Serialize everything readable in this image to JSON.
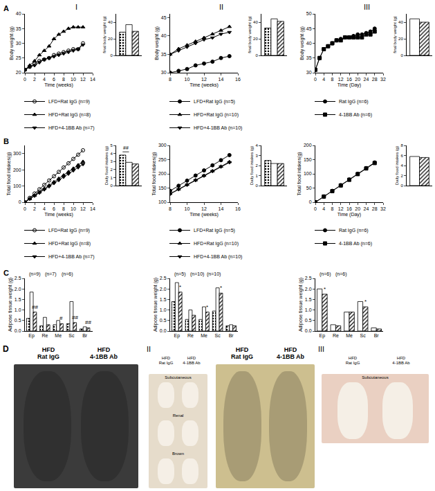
{
  "panel_labels": {
    "rows": [
      "A",
      "B",
      "C"
    ],
    "columns": [
      "I",
      "II",
      "III"
    ]
  },
  "chart_data": [
    {
      "type": "line",
      "x_label": "Time (weeks)",
      "y_label": "Body weight (g)",
      "legend": "bottom",
      "x": [
        0,
        1,
        2,
        3,
        4,
        5,
        6,
        7,
        8,
        9,
        10,
        11,
        12
      ],
      "xlim": [
        0,
        14
      ],
      "xticks": [
        0,
        2,
        4,
        6,
        8,
        10,
        12,
        14
      ],
      "ylim": [
        20,
        40
      ],
      "yticks": [
        20,
        25,
        30,
        35,
        40
      ],
      "series": [
        {
          "name": "LFD+Rat IgG (n=9)",
          "color": "#000000",
          "marker": "circle-open",
          "values": [
            21,
            22,
            23,
            24,
            24.5,
            25,
            26,
            26.5,
            27,
            27.5,
            28,
            28,
            30
          ]
        },
        {
          "name": "HFD+Rat IgG (n=8)",
          "color": "#000000",
          "marker": "triangle-up",
          "values": [
            21,
            22.5,
            24,
            26,
            27.5,
            29,
            31.5,
            33,
            34,
            35,
            35.5,
            35.5,
            35.5
          ]
        },
        {
          "name": "HFD+4-1BB Ab (n=7)",
          "color": "#000000",
          "marker": "triangle-down",
          "values": [
            21,
            22,
            22.5,
            23.5,
            24.5,
            25,
            25.5,
            26,
            26.5,
            27,
            27.5,
            28,
            29.5
          ]
        }
      ]
    },
    {
      "type": "bar",
      "y_label": "final body weight (g)",
      "categories": [
        null
      ],
      "tick_labels": "y",
      "ylim": [
        0,
        50
      ],
      "yticks": [
        0,
        20,
        40
      ],
      "series": [
        {
          "color": "#ffffff",
          "marker": "dotted",
          "values": [
            28
          ]
        },
        {
          "color": "#ffffff",
          "marker": "plain",
          "values": [
            37
          ]
        },
        {
          "color": "#ffffff",
          "marker": "hatched",
          "values": [
            29
          ]
        }
      ]
    },
    {
      "type": "line",
      "x_label": "Time (weeks)",
      "y_label": "Body weight (g)",
      "legend": "bottom",
      "x": [
        8,
        9,
        10,
        11,
        12,
        13,
        14,
        15
      ],
      "xlim": [
        8,
        16
      ],
      "xticks": [
        8,
        10,
        12,
        14,
        16
      ],
      "ylim": [
        30,
        46
      ],
      "yticks": [
        30,
        35,
        40,
        45
      ],
      "series": [
        {
          "name": "LFD+Rat IgG (n=5)",
          "color": "#000000",
          "marker": "circle",
          "values": [
            30,
            30.5,
            31,
            32,
            32.5,
            33,
            34,
            34.5
          ]
        },
        {
          "name": "HFD+Rat IgG (n=10)",
          "color": "#000000",
          "marker": "triangle-up",
          "values": [
            35,
            36.5,
            37.5,
            38.5,
            39.5,
            40.5,
            41.5,
            42.5
          ]
        },
        {
          "name": "HFD+4-1BB Ab (n=10)",
          "color": "#000000",
          "marker": "triangle-down",
          "values": [
            35,
            36,
            37,
            38,
            39,
            39.5,
            40.5,
            41
          ]
        }
      ]
    },
    {
      "type": "bar",
      "y_label": "final body weight (g)",
      "categories": [
        null
      ],
      "tick_labels": "y",
      "ylim": [
        0,
        50
      ],
      "yticks": [
        0,
        20,
        40
      ],
      "series": [
        {
          "color": "#ffffff",
          "marker": "dotted",
          "values": [
            33
          ]
        },
        {
          "color": "#ffffff",
          "marker": "plain",
          "values": [
            44
          ]
        },
        {
          "color": "#ffffff",
          "marker": "hatched",
          "values": [
            41
          ]
        }
      ]
    },
    {
      "type": "line",
      "x_label": "Time (Day)",
      "y_label": "Body weight (g)",
      "legend": "bottom",
      "x": [
        0,
        2,
        4,
        6,
        8,
        10,
        12,
        14,
        16,
        18,
        20,
        22,
        24,
        26,
        28
      ],
      "xlim": [
        0,
        32
      ],
      "xticks": [
        0,
        4,
        8,
        12,
        16,
        20,
        24,
        28,
        32
      ],
      "ylim": [
        30,
        50
      ],
      "yticks": [
        30,
        35,
        40,
        45,
        50
      ],
      "series": [
        {
          "name": "Rat IgG (n=6)",
          "color": "#000000",
          "marker": "circle",
          "values": [
            31,
            35,
            38,
            39,
            40,
            41,
            41.5,
            42,
            42,
            42.5,
            43,
            43,
            43.5,
            44,
            45
          ]
        },
        {
          "name": "4-1BB Ab (n=6)",
          "color": "#000000",
          "marker": "square",
          "values": [
            31,
            35,
            38,
            39,
            40,
            41,
            41,
            42,
            42,
            42,
            42,
            42,
            43,
            43,
            44
          ]
        }
      ]
    },
    {
      "type": "bar",
      "y_label": "final body weight (g)",
      "categories": [
        null
      ],
      "tick_labels": "y",
      "ylim": [
        0,
        50
      ],
      "yticks": [
        0,
        20,
        40
      ],
      "series": [
        {
          "color": "#ffffff",
          "marker": "plain",
          "values": [
            44
          ]
        },
        {
          "color": "#ffffff",
          "marker": "hatched",
          "values": [
            40
          ]
        }
      ]
    },
    {
      "type": "line",
      "x_label": "Time (weeks)",
      "y_label": "Total food intakes(g)",
      "legend": "bottom",
      "x": [
        0,
        1,
        2,
        3,
        4,
        5,
        6,
        7,
        8,
        9,
        10,
        11,
        12
      ],
      "xlim": [
        0,
        14
      ],
      "xticks": [
        0,
        2,
        4,
        6,
        8,
        10,
        12,
        14
      ],
      "ylim": [
        0,
        350
      ],
      "yticks": [
        0,
        100,
        200,
        300
      ],
      "series": [
        {
          "name": "LFD+Rat IgG (n=9)",
          "color": "#000000",
          "marker": "circle-open",
          "values": [
            0,
            27,
            54,
            80,
            107,
            134,
            160,
            187,
            214,
            240,
            267,
            293,
            320
          ]
        },
        {
          "name": "HFD+Rat IgG (n=8)",
          "color": "#000000",
          "marker": "triangle-up",
          "values": [
            0,
            21,
            42,
            62,
            83,
            104,
            125,
            146,
            166,
            187,
            208,
            229,
            250
          ]
        },
        {
          "name": "HFD+4-1BB Ab (n=7)",
          "color": "#000000",
          "marker": "triangle-down",
          "values": [
            0,
            20,
            39,
            58,
            78,
            97,
            117,
            136,
            156,
            175,
            195,
            214,
            234
          ]
        }
      ]
    },
    {
      "type": "bar",
      "y_label": "Daily food intakes (g)",
      "categories": [
        null
      ],
      "tick_labels": "y",
      "ylim": [
        0,
        5
      ],
      "yticks": [
        0,
        1,
        2,
        3,
        4,
        5
      ],
      "annotations": [
        {
          "text": "##"
        }
      ],
      "series": [
        {
          "color": "#ffffff",
          "marker": "dotted",
          "values": [
            3.8
          ]
        },
        {
          "color": "#ffffff",
          "marker": "plain",
          "values": [
            2.9
          ]
        },
        {
          "color": "#ffffff",
          "marker": "hatched",
          "values": [
            2.7
          ]
        }
      ]
    },
    {
      "type": "line",
      "x_label": "Time (weeks)",
      "y_label": "Total food intakes(g)",
      "legend": "bottom",
      "x": [
        8,
        9,
        10,
        11,
        12,
        13,
        14,
        15
      ],
      "xlim": [
        8,
        16
      ],
      "xticks": [
        8,
        10,
        12,
        14,
        16
      ],
      "ylim": [
        100,
        300
      ],
      "yticks": [
        100,
        150,
        200,
        250,
        300
      ],
      "series": [
        {
          "name": "LFD+Rat IgG (n=5)",
          "color": "#000000",
          "marker": "circle",
          "values": [
            140,
            158,
            176,
            194,
            212,
            230,
            248,
            266
          ]
        },
        {
          "name": "HFD+Rat IgG (n=10)",
          "color": "#000000",
          "marker": "triangle-up",
          "values": [
            130,
            146,
            162,
            178,
            194,
            210,
            226,
            242
          ]
        },
        {
          "name": "HFD+4-1BB Ab (n=10)",
          "color": "#000000",
          "marker": "triangle-down",
          "values": [
            129,
            145,
            161,
            177,
            193,
            209,
            225,
            240
          ]
        }
      ]
    },
    {
      "type": "bar",
      "y_label": "Daily food intakes (g)",
      "categories": [
        null
      ],
      "tick_labels": "y",
      "ylim": [
        0,
        4
      ],
      "yticks": [
        0,
        1,
        2,
        3,
        4
      ],
      "series": [
        {
          "color": "#ffffff",
          "marker": "dotted",
          "values": [
            2.5
          ]
        },
        {
          "color": "#ffffff",
          "marker": "plain",
          "values": [
            2.2
          ]
        },
        {
          "color": "#ffffff",
          "marker": "hatched",
          "values": [
            2.2
          ]
        }
      ]
    },
    {
      "type": "line",
      "x_label": "Time (Day)",
      "y_label": "Total food intakes(g)",
      "legend": "bottom",
      "x": [
        0,
        4,
        8,
        12,
        16,
        20,
        24,
        28
      ],
      "xlim": [
        0,
        32
      ],
      "xticks": [
        0,
        4,
        8,
        12,
        16,
        20,
        24,
        28,
        32
      ],
      "ylim": [
        0,
        200
      ],
      "yticks": [
        0,
        50,
        100,
        150,
        200
      ],
      "series": [
        {
          "name": "Rat IgG (n=6)",
          "color": "#000000",
          "marker": "circle",
          "values": [
            0,
            20,
            40,
            60,
            80,
            100,
            120,
            140
          ]
        },
        {
          "name": "4-1BB Ab (n=6)",
          "color": "#000000",
          "marker": "square",
          "values": [
            0,
            20,
            39,
            59,
            79,
            99,
            119,
            138
          ]
        }
      ]
    },
    {
      "type": "bar",
      "y_label": "Daily food intakes (g)",
      "categories": [
        null
      ],
      "tick_labels": "y",
      "ylim": [
        0,
        8
      ],
      "yticks": [
        0,
        2,
        4,
        6,
        8
      ],
      "series": [
        {
          "color": "#ffffff",
          "marker": "plain",
          "values": [
            5.8
          ]
        },
        {
          "color": "#ffffff",
          "marker": "hatched",
          "values": [
            5.6
          ]
        }
      ]
    },
    {
      "type": "bar",
      "y_label": "Adipose tissue weight (g)",
      "categories": [
        "Ep",
        "Re",
        "Me",
        "Sc",
        "Br"
      ],
      "ylim": [
        0,
        2.5
      ],
      "yticks": [
        {
          "value": 0,
          "label": "0.0"
        },
        0.5,
        {
          "value": 1,
          "label": "1.0"
        },
        1.5,
        {
          "value": 2,
          "label": "2.0"
        },
        2.5
      ],
      "annotations": [
        {
          "text": "(n=9)"
        },
        {
          "text": "(n=7)"
        },
        {
          "text": "(n=6)"
        },
        {
          "text": "##",
          "category": "Ep",
          "series": 2
        },
        {
          "text": "#",
          "category": "Me",
          "series": 2
        },
        {
          "text": "##",
          "category": "Sc",
          "series": 2
        },
        {
          "text": "##",
          "category": "Br",
          "series": 2
        }
      ],
      "series": [
        {
          "color": "#ffffff",
          "marker": "dotted",
          "values": [
            0.6,
            0.25,
            0.3,
            0.35,
            0.1
          ]
        },
        {
          "color": "#ffffff",
          "marker": "plain",
          "values": [
            1.85,
            0.65,
            0.5,
            1.4,
            0.2
          ]
        },
        {
          "color": "#ffffff",
          "marker": "hatched",
          "values": [
            0.9,
            0.3,
            0.35,
            0.4,
            0.15
          ]
        }
      ]
    },
    {
      "type": "bar",
      "y_label": "Adipose tissue weight (g)",
      "categories": [
        "Ep",
        "Re",
        "Me",
        "Sc",
        "Br"
      ],
      "ylim": [
        0,
        2.5
      ],
      "yticks": [
        {
          "value": 0,
          "label": "0.0"
        },
        0.5,
        {
          "value": 1,
          "label": "1.0"
        },
        1.5,
        {
          "value": 2,
          "label": "2.0"
        },
        2.5
      ],
      "annotations": [
        {
          "text": "(n=5)"
        },
        {
          "text": "(n=10)"
        },
        {
          "text": "(n=10)"
        },
        {
          "text": "*",
          "category": "Ep",
          "series": 2
        },
        {
          "text": "*",
          "category": "Me",
          "series": 2
        },
        {
          "text": "*",
          "category": "Sc",
          "series": 2
        }
      ],
      "series": [
        {
          "color": "#ffffff",
          "marker": "dotted",
          "values": [
            1.4,
            0.55,
            0.55,
            0.95,
            0.25
          ]
        },
        {
          "color": "#ffffff",
          "marker": "plain",
          "values": [
            2.3,
            1.0,
            1.15,
            2.05,
            0.3
          ]
        },
        {
          "color": "#ffffff",
          "marker": "hatched",
          "values": [
            1.85,
            0.75,
            0.9,
            1.8,
            0.25
          ]
        }
      ]
    },
    {
      "type": "bar",
      "y_label": "Adipose tissue weight (g)",
      "categories": [
        "Ep",
        "Re",
        "Me",
        "Sc",
        "Br"
      ],
      "ylim": [
        0,
        2.5
      ],
      "yticks": [
        {
          "value": 0,
          "label": "0.0"
        },
        0.5,
        {
          "value": 1,
          "label": "1.0"
        },
        1.5,
        {
          "value": 2,
          "label": "2.0"
        },
        2.5
      ],
      "annotations": [
        {
          "text": "(n=6)"
        },
        {
          "text": "(n=6)"
        },
        {
          "text": "*",
          "category": "Ep",
          "series": 1
        },
        {
          "text": "*",
          "category": "Sc",
          "series": 1
        }
      ],
      "series": [
        {
          "color": "#ffffff",
          "marker": "plain",
          "values": [
            2.0,
            0.3,
            0.9,
            1.4,
            0.15
          ]
        },
        {
          "color": "#ffffff",
          "marker": "hatched",
          "values": [
            1.75,
            0.25,
            0.9,
            1.15,
            0.1
          ]
        }
      ]
    }
  ],
  "panel_d": {
    "label": "D",
    "items": [
      {
        "headings": [
          [
            "HFD",
            "Rat IgG"
          ],
          [
            "HFD",
            "4-1BB Ab"
          ]
        ],
        "color": "#3b3b3b"
      },
      {
        "label": "II",
        "headings": [
          [
            "HFD",
            "Rat IgG"
          ],
          [
            "HFD",
            "4-1BB Ab"
          ]
        ],
        "parts": [
          "Subcutaneous",
          "Renal",
          "Brown"
        ],
        "color": "#e6dccb"
      },
      {
        "headings": [
          [
            "HFD",
            "Rat IgG"
          ],
          [
            "HFD",
            "4-1BB Ab"
          ]
        ],
        "color": "#cdbf8f"
      },
      {
        "label": "III",
        "headings": [
          [
            "HFD",
            "Rat IgG"
          ],
          [
            "HFD",
            "4-1BB Ab"
          ]
        ],
        "parts": [
          "Subcutaneous"
        ],
        "color": "#ead0c2"
      }
    ]
  }
}
